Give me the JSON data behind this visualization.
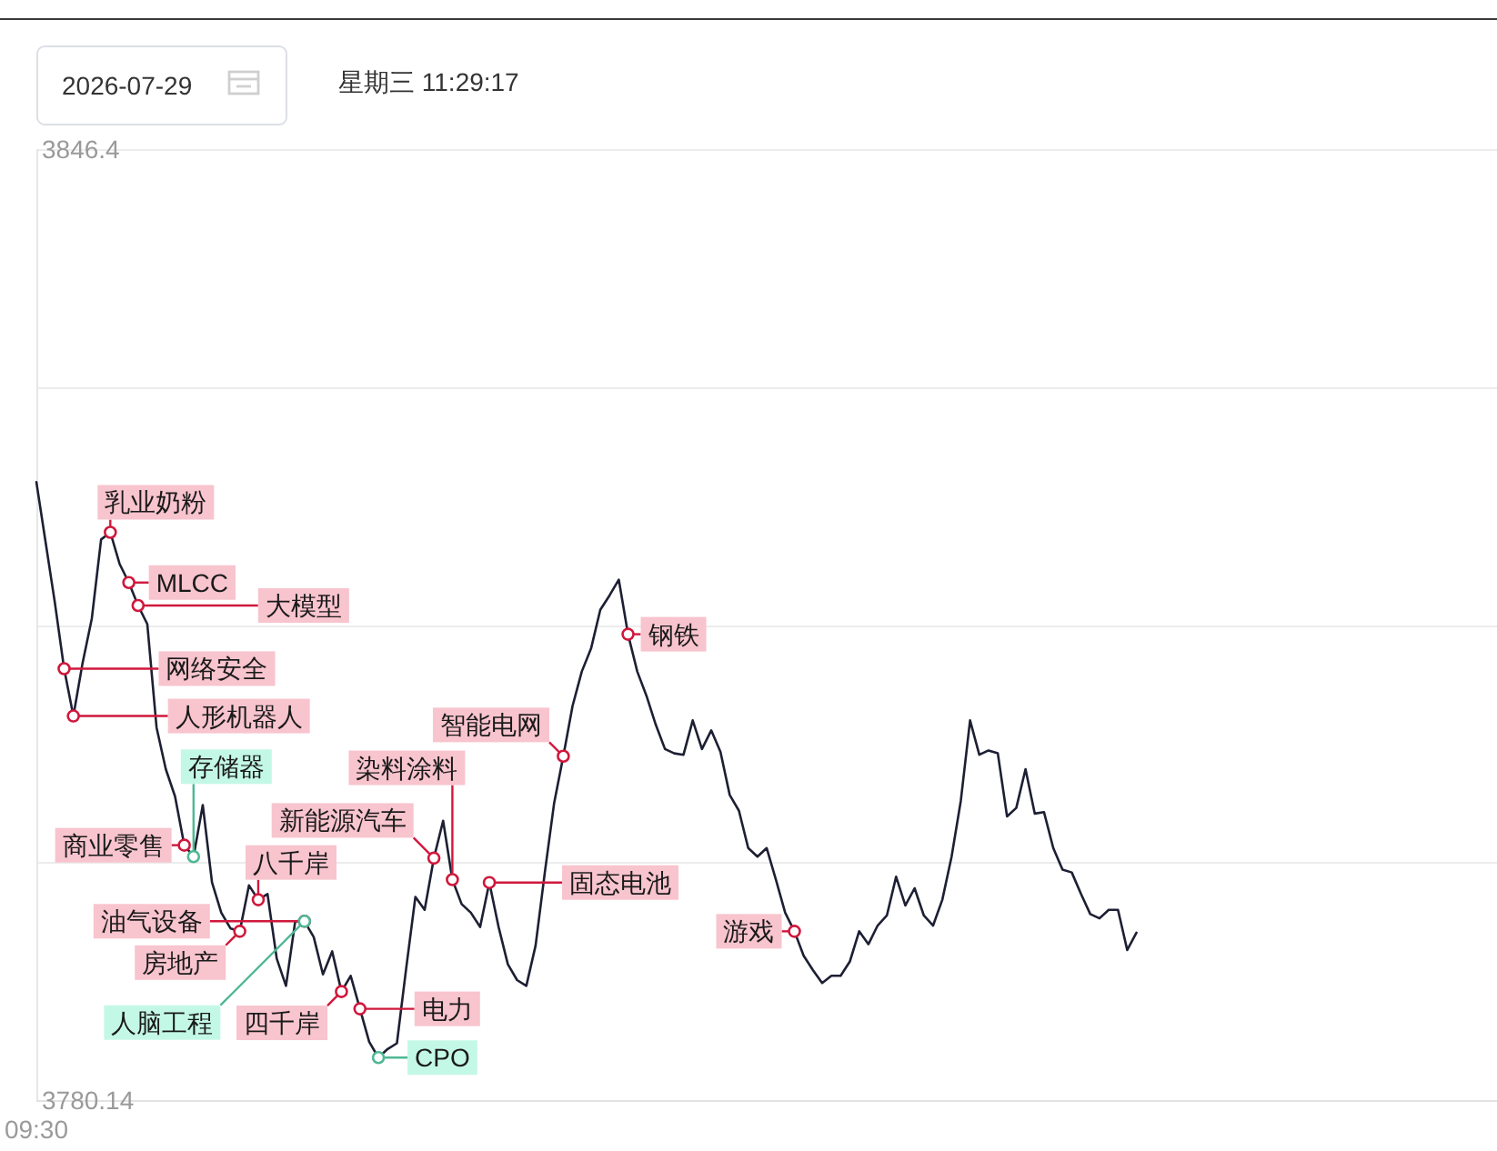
{
  "chart_data": {
    "type": "line",
    "annotations": [
      "2026-07-29",
      "星期三 11:29:17"
    ],
    "categories": [
      "09:30",
      null,
      null,
      null,
      null,
      null,
      null,
      null,
      null,
      null,
      null,
      null,
      null,
      null,
      null,
      null,
      null,
      null,
      null,
      null,
      null,
      null,
      null,
      null,
      null,
      null,
      null,
      null,
      null,
      null,
      null,
      null,
      null,
      null,
      null,
      null,
      null,
      null,
      null,
      null,
      null,
      null,
      null,
      null,
      null,
      null,
      null,
      null,
      null,
      null,
      null,
      null,
      null,
      null,
      null,
      null,
      null,
      null,
      null,
      null,
      null,
      null,
      null,
      null,
      null,
      null,
      null,
      null,
      null,
      null,
      null,
      null,
      null,
      null,
      null,
      null,
      null,
      null,
      null,
      null,
      null,
      null,
      null,
      null,
      null,
      null,
      null,
      null,
      null,
      null,
      null,
      null,
      null,
      null,
      null,
      null,
      null,
      null,
      null,
      null,
      null,
      null,
      null,
      null,
      null,
      null,
      null,
      null,
      null,
      null,
      null,
      null,
      null,
      null,
      null,
      null,
      null,
      null,
      null,
      null,
      null,
      null,
      null,
      null,
      null,
      null,
      null,
      null,
      null,
      null,
      null,
      null,
      null,
      null,
      null,
      null,
      null,
      null,
      null,
      null,
      null,
      null,
      null,
      null,
      null,
      null,
      null,
      null,
      null,
      null,
      null,
      null,
      null,
      null,
      null,
      null,
      null,
      null,
      null
    ],
    "ylim": [
      3780.14,
      3846.4
    ],
    "yticks": [
      3780.14,
      {
        "value": 3796.705,
        "label": null
      },
      {
        "value": 3813.27,
        "label": null
      },
      {
        "value": 3829.835,
        "label": null
      },
      3846.4
    ],
    "grid": "y",
    "series": [
      {
        "type": "line",
        "color": "#1d1f33",
        "values": [
          3823.2,
          3819.0,
          3814.8,
          3810.2,
          3806.9,
          3810.6,
          3813.7,
          3819.2,
          3819.7,
          3817.5,
          3816.2,
          3814.6,
          3813.3,
          3806.1,
          3803.2,
          3801.3,
          3797.9,
          3797.1,
          3800.7,
          3795.3,
          3793.2,
          3792.1,
          3791.9,
          3795.1,
          3794.1,
          3794.5,
          3790.0,
          3788.1,
          3792.6,
          3792.6,
          3791.5,
          3788.9,
          3790.5,
          3787.7,
          3788.8,
          3786.5,
          3784.2,
          3783.1,
          3783.7,
          3784.1,
          3789.3,
          3794.3,
          3793.4,
          3797.0,
          3799.6,
          3795.5,
          3793.8,
          3793.2,
          3792.2,
          3795.3,
          3792.2,
          3789.6,
          3788.5,
          3788.1,
          3790.9,
          3796.0,
          3800.8,
          3804.1,
          3807.6,
          3810.0,
          3811.6,
          3814.3,
          3815.3,
          3816.4,
          3812.6,
          3810.0,
          3808.3,
          3806.3,
          3804.6,
          3804.3,
          3804.2,
          3806.6,
          3804.6,
          3805.9,
          3804.4,
          3801.4,
          3800.3,
          3797.7,
          3797.1,
          3797.7,
          3795.5,
          3793.2,
          3791.9,
          3790.2,
          3789.2,
          3788.3,
          3788.8,
          3788.8,
          3789.8,
          3791.9,
          3791.0,
          3792.3,
          3793.0,
          3795.7,
          3793.7,
          3794.9,
          3793.0,
          3792.3,
          3794.1,
          3797.1,
          3801.0,
          3806.6,
          3804.2,
          3804.5,
          3804.3,
          3799.9,
          3800.5,
          3803.2,
          3800.1,
          3800.2,
          3797.7,
          3796.2,
          3796.0,
          3794.5,
          3793.1,
          3792.8,
          3793.4,
          3793.4,
          3790.6,
          3791.8,
          null,
          null,
          null,
          null,
          null,
          null,
          null,
          null,
          null,
          null,
          null,
          null,
          null,
          null,
          null,
          null,
          null,
          null,
          null,
          null,
          null,
          null,
          null,
          null,
          null,
          null,
          null,
          null,
          null,
          null,
          null,
          null,
          null,
          null,
          null,
          null,
          null,
          null,
          null
        ]
      },
      {
        "type": "scatter",
        "color": "#d0183c",
        "marker": "circle",
        "values": [
          null,
          null,
          null,
          3810.2,
          3806.9,
          null,
          null,
          null,
          3819.7,
          null,
          3816.2,
          3814.6,
          null,
          null,
          null,
          null,
          3797.9,
          null,
          null,
          null,
          null,
          null,
          3791.9,
          null,
          3794.1,
          null,
          null,
          null,
          null,
          3792.6,
          null,
          null,
          null,
          3787.7,
          null,
          3786.5,
          null,
          null,
          null,
          null,
          null,
          null,
          null,
          3797.0,
          null,
          3795.5,
          null,
          null,
          null,
          3795.3,
          null,
          null,
          null,
          null,
          null,
          null,
          null,
          3804.1,
          null,
          null,
          null,
          null,
          null,
          null,
          3812.6,
          null,
          null,
          null,
          null,
          null,
          null,
          null,
          null,
          null,
          null,
          null,
          null,
          null,
          null,
          null,
          null,
          null,
          3791.9,
          null,
          null,
          null,
          null,
          null,
          null,
          null,
          null,
          null,
          null,
          null,
          null,
          null,
          null,
          null,
          null,
          null,
          null,
          null,
          null,
          null,
          null,
          null,
          null,
          null,
          null,
          null,
          null,
          null,
          null,
          null,
          null,
          null,
          null,
          null,
          null,
          null,
          null,
          null,
          null,
          null,
          null,
          null,
          null,
          null,
          null,
          null,
          null,
          null,
          null,
          null,
          null,
          null,
          null,
          null,
          null,
          null,
          null,
          null,
          null,
          null,
          null,
          null,
          null,
          null,
          null,
          null,
          null,
          null,
          null,
          null,
          null,
          null,
          null,
          null,
          null
        ],
        "value_labels": [
          null,
          null,
          null,
          "网络安全",
          "人形机器人",
          null,
          null,
          null,
          "乳业奶粉",
          null,
          "MLCC",
          "大模型",
          null,
          null,
          null,
          null,
          "商业零售",
          null,
          null,
          null,
          null,
          null,
          "房地产",
          null,
          "八千岸",
          null,
          null,
          null,
          null,
          "油气设备",
          null,
          null,
          null,
          "四千岸",
          null,
          "电力",
          null,
          null,
          null,
          null,
          null,
          null,
          null,
          "新能源汽车",
          null,
          "染料涂料",
          null,
          null,
          null,
          "固态电池",
          null,
          null,
          null,
          null,
          null,
          null,
          null,
          "智能电网",
          null,
          null,
          null,
          null,
          null,
          null,
          "钢铁",
          null,
          null,
          null,
          null,
          null,
          null,
          null,
          null,
          null,
          null,
          null,
          null,
          null,
          null,
          null,
          null,
          null,
          "游戏",
          null,
          null,
          null,
          null,
          null,
          null,
          null,
          null,
          null,
          null,
          null,
          null,
          null,
          null,
          null,
          null,
          null,
          null,
          null,
          null,
          null,
          null,
          null,
          null,
          null,
          null,
          null,
          null,
          null,
          null,
          null,
          null,
          null,
          null,
          null,
          null,
          null,
          null,
          null,
          null,
          null,
          null,
          null,
          null,
          null,
          null,
          null,
          null,
          null,
          null,
          null,
          null,
          null,
          null,
          null,
          null,
          null,
          null,
          null,
          null,
          null,
          null,
          null,
          null,
          null,
          null,
          null,
          null,
          null,
          null,
          null,
          null,
          null,
          null,
          null,
          null
        ]
      },
      {
        "type": "scatter",
        "color": "#4fb894",
        "marker": "circle",
        "values": [
          null,
          null,
          null,
          null,
          null,
          null,
          null,
          null,
          null,
          null,
          null,
          null,
          null,
          null,
          null,
          null,
          null,
          3797.1,
          null,
          null,
          null,
          null,
          null,
          null,
          null,
          null,
          null,
          null,
          null,
          3792.6,
          null,
          null,
          null,
          null,
          null,
          null,
          null,
          3783.1,
          null,
          null,
          null,
          null,
          null,
          null,
          null,
          null,
          null,
          null,
          null,
          null,
          null,
          null,
          null,
          null,
          null,
          null,
          null,
          null,
          null,
          null,
          null,
          null,
          null,
          null,
          null,
          null,
          null,
          null,
          null,
          null,
          null,
          null,
          null,
          null,
          null,
          null,
          null,
          null,
          null,
          null,
          null,
          null,
          null,
          null,
          null,
          null,
          null,
          null,
          null,
          null,
          null,
          null,
          null,
          null,
          null,
          null,
          null,
          null,
          null,
          null,
          null,
          null,
          null,
          null,
          null,
          null,
          null,
          null,
          null,
          null,
          null,
          null,
          null,
          null,
          null,
          null,
          null,
          null,
          null,
          null,
          null,
          null,
          null,
          null,
          null,
          null,
          null,
          null,
          null,
          null,
          null,
          null,
          null,
          null,
          null,
          null,
          null,
          null,
          null,
          null,
          null,
          null,
          null,
          null,
          null,
          null,
          null,
          null,
          null,
          null,
          null,
          null,
          null,
          null,
          null,
          null,
          null,
          null,
          null
        ],
        "value_labels": [
          null,
          null,
          null,
          null,
          null,
          null,
          null,
          null,
          null,
          null,
          null,
          null,
          null,
          null,
          null,
          null,
          null,
          "存储器",
          null,
          null,
          null,
          null,
          null,
          null,
          null,
          null,
          null,
          null,
          null,
          "人脑工程",
          null,
          null,
          null,
          null,
          null,
          null,
          null,
          "CPO",
          null,
          null,
          null,
          null,
          null,
          null,
          null,
          null,
          null,
          null,
          null,
          null,
          null,
          null,
          null,
          null,
          null,
          null,
          null,
          null,
          null,
          null,
          null,
          null,
          null,
          null,
          null,
          null,
          null,
          null,
          null,
          null,
          null,
          null,
          null,
          null,
          null,
          null,
          null,
          null,
          null,
          null,
          null,
          null,
          null,
          null,
          null,
          null,
          null,
          null,
          null,
          null,
          null,
          null,
          null,
          null,
          null,
          null,
          null,
          null,
          null,
          null,
          null,
          null,
          null,
          null,
          null,
          null,
          null,
          null,
          null,
          null,
          null,
          null,
          null,
          null,
          null,
          null,
          null,
          null,
          null,
          null,
          null,
          null,
          null,
          null,
          null,
          null,
          null,
          null,
          null,
          null,
          null,
          null,
          null,
          null,
          null,
          null,
          null,
          null,
          null,
          null,
          null,
          null,
          null,
          null,
          null,
          null,
          null,
          null,
          null,
          null,
          null,
          null,
          null,
          null,
          null,
          null,
          null,
          null,
          null
        ]
      }
    ]
  }
}
